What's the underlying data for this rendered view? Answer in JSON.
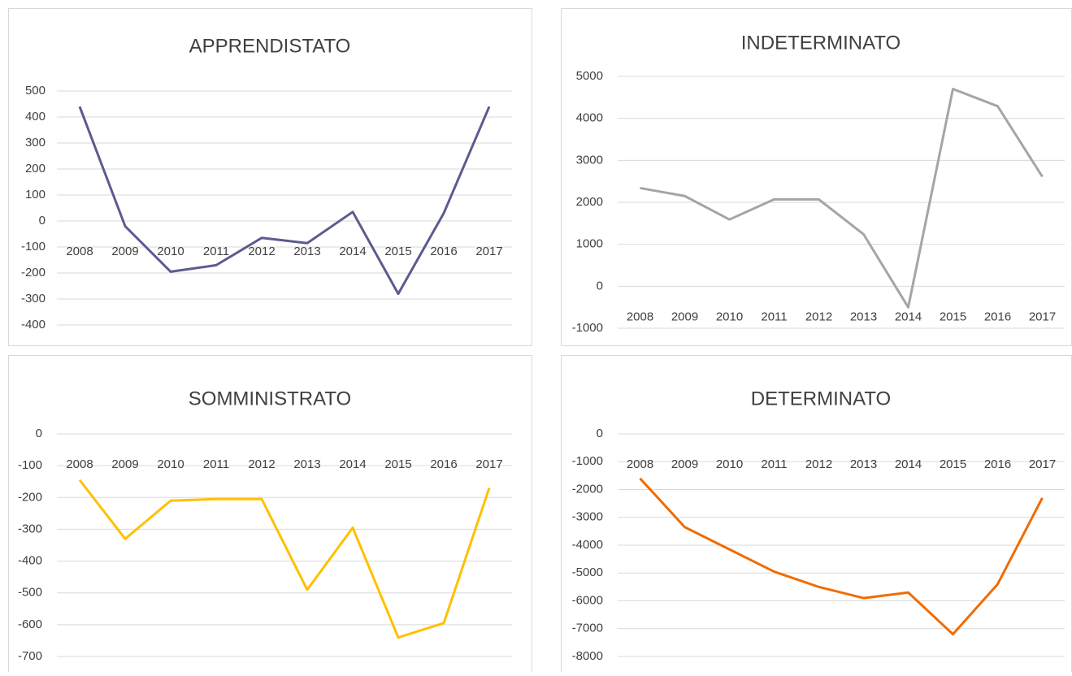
{
  "chart_data": [
    {
      "type": "line",
      "title": "APPRENDISTATO",
      "categories": [
        "2008",
        "2009",
        "2010",
        "2011",
        "2012",
        "2013",
        "2014",
        "2015",
        "2016",
        "2017"
      ],
      "values": [
        440,
        -20,
        -195,
        -170,
        -65,
        -85,
        35,
        -280,
        30,
        440
      ],
      "color": "#5b5b8f",
      "ylim": [
        -400,
        500
      ],
      "yticks": [
        -400,
        -300,
        -200,
        -100,
        0,
        100,
        200,
        300,
        400,
        500
      ],
      "grid": true
    },
    {
      "type": "line",
      "title": "INDETERMINATO",
      "categories": [
        "2008",
        "2009",
        "2010",
        "2011",
        "2012",
        "2013",
        "2014",
        "2015",
        "2016",
        "2017"
      ],
      "values": [
        2340,
        2150,
        1590,
        2070,
        2070,
        1240,
        -500,
        4700,
        4290,
        2610
      ],
      "color": "#a5a5a5",
      "ylim": [
        -1000,
        5000
      ],
      "yticks": [
        -1000,
        0,
        1000,
        2000,
        3000,
        4000,
        5000
      ],
      "grid": true
    },
    {
      "type": "line",
      "title": "SOMMINISTRATO",
      "categories": [
        "2008",
        "2009",
        "2010",
        "2011",
        "2012",
        "2013",
        "2014",
        "2015",
        "2016",
        "2017"
      ],
      "values": [
        -145,
        -330,
        -210,
        -205,
        -205,
        -490,
        -295,
        -640,
        -595,
        -170
      ],
      "color": "#ffc000",
      "ylim": [
        -700,
        0
      ],
      "yticks": [
        -700,
        -600,
        -500,
        -400,
        -300,
        -200,
        -100,
        0
      ],
      "grid": true
    },
    {
      "type": "line",
      "title": "DETERMINATO",
      "categories": [
        "2008",
        "2009",
        "2010",
        "2011",
        "2012",
        "2013",
        "2014",
        "2015",
        "2016",
        "2017"
      ],
      "values": [
        -1600,
        -3350,
        -4150,
        -4950,
        -5500,
        -5900,
        -5700,
        -7200,
        -5400,
        -2300
      ],
      "color": "#f06c00",
      "ylim": [
        -8000,
        0
      ],
      "yticks": [
        -8000,
        -7000,
        -6000,
        -5000,
        -4000,
        -3000,
        -2000,
        -1000,
        0
      ],
      "grid": true
    }
  ]
}
